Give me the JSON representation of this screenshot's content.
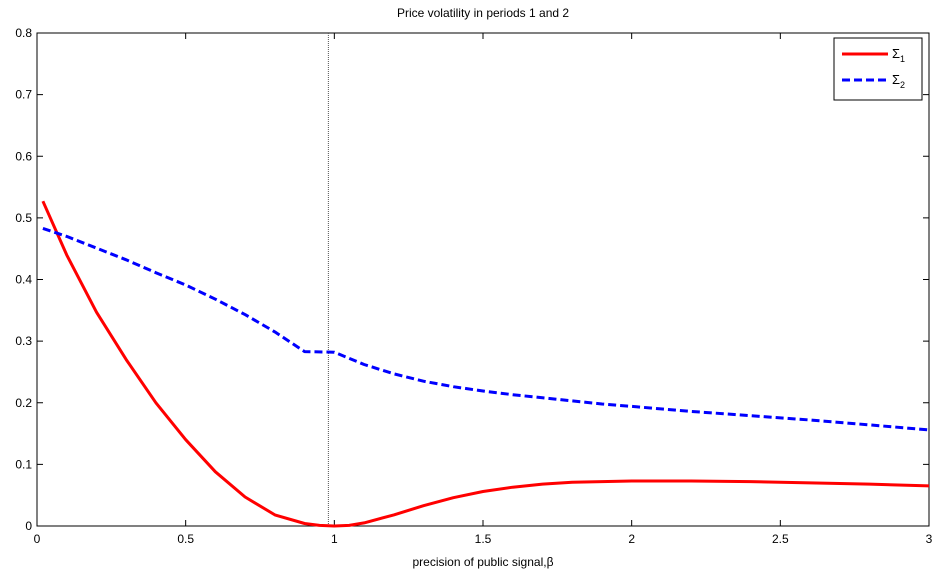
{
  "chart_data": {
    "type": "line",
    "title": "Price volatility in periods 1 and 2",
    "xlabel": "precision of public signal,β",
    "ylabel": "",
    "xlim": [
      0,
      3
    ],
    "ylim": [
      0,
      0.8
    ],
    "xticks": [
      "0",
      "0.5",
      "1",
      "1.5",
      "2",
      "2.5",
      "3"
    ],
    "yticks": [
      "0",
      "0.1",
      "0.2",
      "0.3",
      "0.4",
      "0.5",
      "0.6",
      "0.7",
      "0.8"
    ],
    "grid": false,
    "legend_position": "top-right",
    "vertical_reference_line_x": 0.98,
    "series": [
      {
        "name": "Σ1",
        "symbol": "Σ",
        "subscript": "1",
        "color": "#ff0000",
        "style": "solid",
        "x": [
          0.02,
          0.1,
          0.2,
          0.3,
          0.4,
          0.5,
          0.6,
          0.7,
          0.8,
          0.9,
          0.95,
          1.0,
          1.05,
          1.1,
          1.2,
          1.3,
          1.4,
          1.5,
          1.6,
          1.7,
          1.8,
          1.9,
          2.0,
          2.2,
          2.4,
          2.6,
          2.8,
          3.0
        ],
        "y": [
          0.527,
          0.44,
          0.347,
          0.27,
          0.2,
          0.14,
          0.088,
          0.047,
          0.018,
          0.004,
          0.001,
          0.0,
          0.001,
          0.005,
          0.018,
          0.033,
          0.046,
          0.056,
          0.063,
          0.068,
          0.071,
          0.072,
          0.073,
          0.073,
          0.072,
          0.07,
          0.068,
          0.065
        ]
      },
      {
        "name": "Σ2",
        "symbol": "Σ",
        "subscript": "2",
        "color": "#0000ff",
        "style": "dashed",
        "x": [
          0.02,
          0.1,
          0.2,
          0.3,
          0.4,
          0.5,
          0.6,
          0.7,
          0.8,
          0.9,
          1.0,
          1.1,
          1.2,
          1.3,
          1.4,
          1.5,
          1.6,
          1.7,
          1.8,
          1.9,
          2.0,
          2.2,
          2.4,
          2.6,
          2.8,
          3.0
        ],
        "y": [
          0.483,
          0.47,
          0.451,
          0.432,
          0.411,
          0.391,
          0.368,
          0.343,
          0.315,
          0.283,
          0.282,
          0.262,
          0.247,
          0.235,
          0.226,
          0.219,
          0.213,
          0.208,
          0.203,
          0.198,
          0.194,
          0.186,
          0.179,
          0.172,
          0.164,
          0.156
        ]
      }
    ]
  }
}
